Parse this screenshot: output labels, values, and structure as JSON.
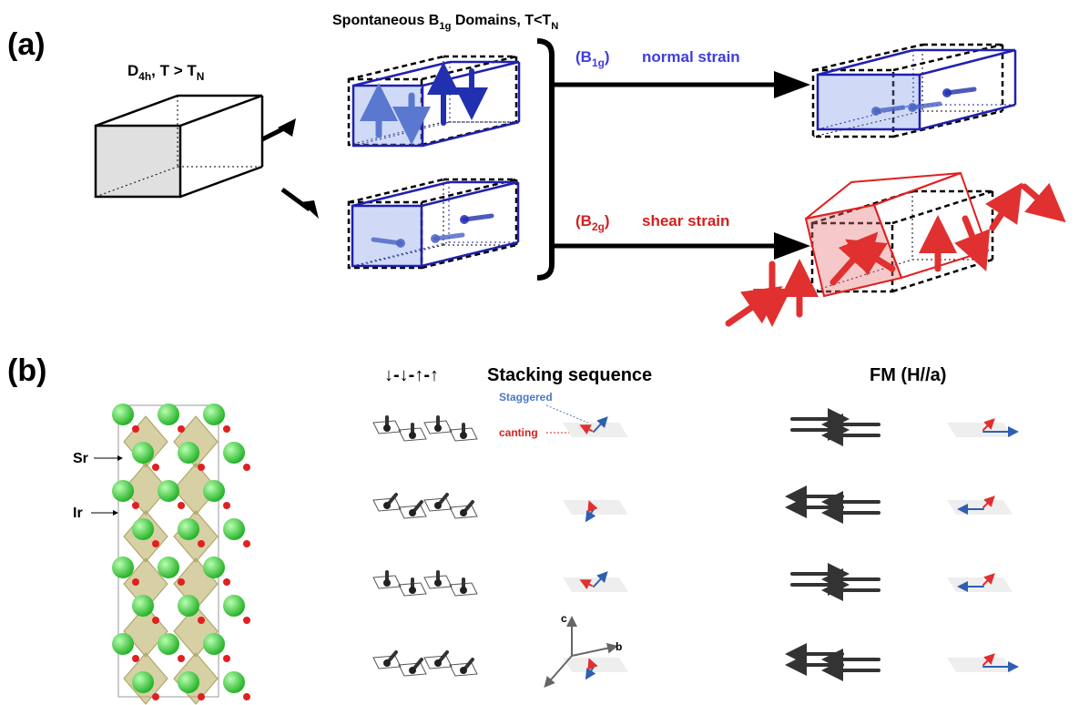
{
  "panel_a": {
    "label": "(a)",
    "parent_phase": [
      "D",
      "4h",
      ", T > T",
      "N"
    ],
    "domains_title": [
      "Spontaneous B",
      "1g",
      " Domains, T<T",
      "N"
    ],
    "normal": {
      "irrep": [
        "(B",
        "1g",
        ")"
      ],
      "label": "normal strain"
    },
    "shear": {
      "irrep": [
        "(B",
        "2g",
        ")"
      ],
      "label": "shear strain"
    }
  },
  "panel_b": {
    "label": "(b)",
    "atoms": [
      "Sr",
      "Ir"
    ],
    "stacking": {
      "sequence": "↓-↓-↑-↑",
      "title": "Stacking sequence",
      "staggered": "Staggered",
      "canting": "canting"
    },
    "axes": [
      "c",
      "b"
    ],
    "fm_title": "FM (H//a)"
  }
}
